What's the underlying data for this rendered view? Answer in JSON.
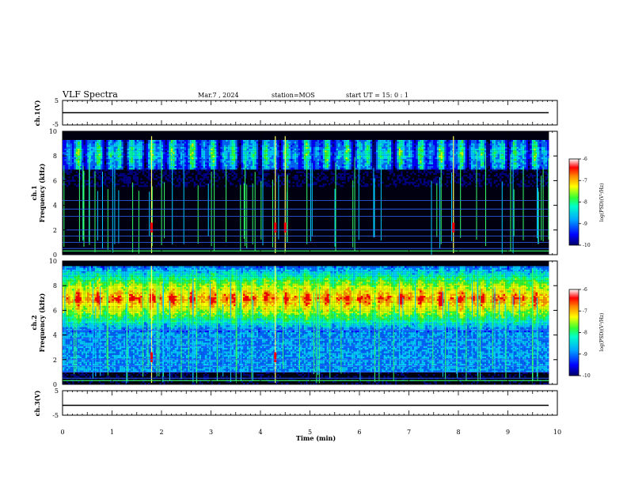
{
  "header": {
    "title": "VLF Spectra",
    "date": "Mar.7 , 2024",
    "station": "station=MOS",
    "start": "start  UT =  15: 0  : 1"
  },
  "chart_data": [
    {
      "type": "line",
      "panel": "ch1-voltage",
      "ylabel": "ch.1(V)",
      "ylim": [
        -5,
        5
      ],
      "yticks_labeled": [
        "5",
        "-5"
      ],
      "x_range_min": [
        0,
        9.83
      ],
      "series": [
        {
          "values": [
            0,
            0
          ]
        }
      ]
    },
    {
      "type": "heatmap",
      "panel": "ch1-spectrogram",
      "ylabel": "ch.1\nFrequency (kHz)",
      "ylim": [
        0,
        10
      ],
      "yticks": [
        0,
        2,
        4,
        6,
        8,
        10
      ],
      "x_range_min": [
        0,
        9.83
      ],
      "event_lines_min": [
        1.8,
        4.3,
        4.5,
        7.9
      ],
      "emission_band_khz": [
        7.0,
        9.5
      ],
      "colorbar": {
        "label": "log(PSD)(V²/Hz)",
        "ticks": [
          "-6",
          "-7",
          "-8",
          "-9",
          "-10"
        ],
        "range": [
          -10,
          -6
        ]
      }
    },
    {
      "type": "heatmap",
      "panel": "ch2-spectrogram",
      "ylabel": "ch.2\nFrequency (kHz)",
      "ylim": [
        0,
        10
      ],
      "yticks": [
        0,
        2,
        4,
        6,
        8,
        10
      ],
      "x_range_min": [
        0,
        9.83
      ],
      "event_lines_min": [
        1.8,
        4.3
      ],
      "emission_band_khz": [
        4.5,
        9.5
      ],
      "colorbar": {
        "label": "log(PSD)(V²/Hz)",
        "ticks": [
          "-6",
          "-7",
          "-8",
          "-9",
          "-10"
        ],
        "range": [
          -10,
          -6
        ]
      }
    },
    {
      "type": "line",
      "panel": "ch3-voltage",
      "ylabel": "ch.3(V)",
      "ylim": [
        -5,
        5
      ],
      "yticks_labeled": [
        "5",
        "-5"
      ],
      "x_range_min": [
        0,
        9.83
      ],
      "series": [
        {
          "values": [
            0,
            0
          ]
        }
      ]
    }
  ],
  "xaxis": {
    "label": "Time  (min)",
    "ticks": [
      "0",
      "1",
      "2",
      "3",
      "4",
      "5",
      "6",
      "7",
      "8",
      "9",
      "10"
    ],
    "range": [
      0,
      10
    ]
  }
}
